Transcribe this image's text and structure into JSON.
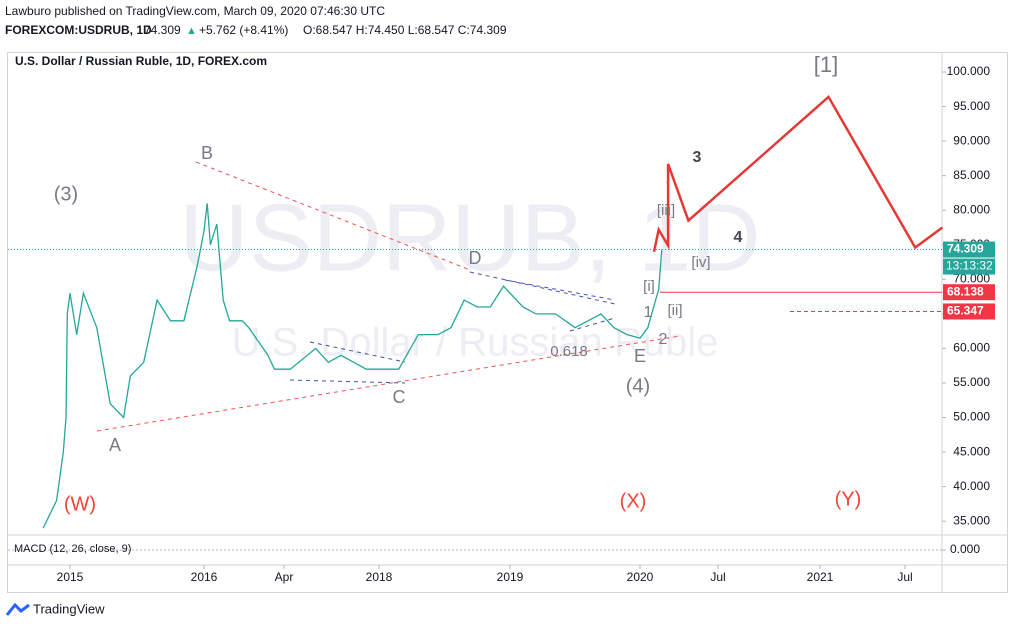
{
  "header": {
    "line1": "Lawburo published on TradingView.com, March 09, 2020 07:46:30 UTC",
    "symbol": "FOREXCOM:USDRUB, 1D",
    "last": "74.309",
    "change": "+5.762 (+8.41%)",
    "ohlc": "O:68.547 H:74.450 L:68.547 C:74.309"
  },
  "chart_data": {
    "type": "line",
    "title": "U.S. Dollar / Russian Ruble, 1D, FOREX.com",
    "watermark": "USDRUB, 1D",
    "watermark_sub": "U.S. Dollar / Russian Ruble",
    "series": [
      {
        "color": "#26a69a",
        "x": [
          2014.8,
          2014.9,
          2014.95,
          2014.97,
          2014.98,
          2015.0,
          2015.05,
          2015.1,
          2015.2,
          2015.3,
          2015.4,
          2015.45,
          2015.55,
          2015.65,
          2015.75,
          2015.85,
          2015.95,
          2016.0,
          2016.05,
          2016.1,
          2016.2,
          2016.3,
          2016.4,
          2016.5,
          2016.6,
          2016.7,
          2016.85,
          2017.0,
          2017.1,
          2017.3,
          2017.5,
          2017.6,
          2017.7,
          2017.8,
          2017.9,
          2018.0,
          2018.15,
          2018.3,
          2018.45,
          2018.55,
          2018.65,
          2018.75,
          2018.85,
          2018.95,
          2019.1,
          2019.2,
          2019.35,
          2019.5,
          2019.6,
          2019.7,
          2019.8,
          2019.9,
          2020.0,
          2020.05,
          2020.1,
          2020.12,
          2020.14
        ],
        "values": [
          34,
          38,
          45,
          50,
          65,
          68,
          62,
          68,
          63,
          52,
          50,
          56,
          58,
          67,
          64,
          64,
          72,
          77,
          81,
          75,
          78,
          67,
          64,
          64,
          64,
          63,
          61,
          59,
          57,
          57,
          60,
          58,
          59,
          58,
          57,
          57,
          57,
          62,
          62,
          63,
          67,
          66,
          66,
          69,
          66,
          65,
          65,
          63,
          64,
          65,
          63,
          62,
          61.5,
          63,
          67,
          68.5,
          74.3
        ]
      },
      {
        "color": "#e53935",
        "x": [
          2020.09,
          2020.12,
          2020.18,
          2020.18,
          2020.31,
          2021.05,
          2021.56,
          2021.72
        ],
        "values": [
          74,
          77.2,
          74.9,
          86.7,
          78.5,
          96.4,
          74.6,
          77.5
        ]
      }
    ],
    "xticks": [
      {
        "value": 2015,
        "label": "2015"
      },
      {
        "value": 2016,
        "label": "2016"
      },
      {
        "value": 2017.25,
        "label": "Apr"
      },
      {
        "value": 2018,
        "label": "2018"
      },
      {
        "value": 2019,
        "label": "2019"
      },
      {
        "value": 2020,
        "label": "2020"
      },
      {
        "value": 2020.5,
        "label": "Jul"
      },
      {
        "value": 2021,
        "label": "2021"
      },
      {
        "value": 2021.5,
        "label": "Jul"
      }
    ],
    "ylim": [
      33,
      102.9
    ],
    "yticks": [
      {
        "value": 35,
        "label": "35.000"
      },
      {
        "value": 40,
        "label": "40.000"
      },
      {
        "value": 45,
        "label": "45.000"
      },
      {
        "value": 50,
        "label": "50.000"
      },
      {
        "value": 55,
        "label": "55.000"
      },
      {
        "value": 60,
        "label": "60.000"
      },
      {
        "value": 65,
        "label": "65.000"
      },
      {
        "value": 70,
        "label": "70.000"
      },
      {
        "value": 75,
        "label": "75.000"
      },
      {
        "value": 80,
        "label": "80.000"
      },
      {
        "value": 85,
        "label": "85.000"
      },
      {
        "value": 90,
        "label": "90.000"
      },
      {
        "value": 95,
        "label": "95.000"
      },
      {
        "value": 100,
        "label": "100.000"
      }
    ],
    "price_lines": {
      "values": [
        74.309,
        68.138,
        65.347
      ],
      "colors": [
        "#26a69a",
        "#f23645",
        "#f23645"
      ]
    },
    "countdown": "13:13:32",
    "annotations": [
      "(3)",
      "B",
      "A",
      "C",
      "D",
      "E",
      "(4)",
      "1",
      "2",
      "[i]",
      "[ii]",
      "[iii]",
      "[iv]",
      "3",
      "4",
      "[1]",
      "(W)",
      "(X)",
      "(Y)",
      "0.618"
    ],
    "macd": {
      "label": "MACD (12, 26, close, 9)",
      "yticks": [
        {
          "value": 0,
          "label": "0.000"
        }
      ]
    }
  },
  "footer": "TradingView"
}
